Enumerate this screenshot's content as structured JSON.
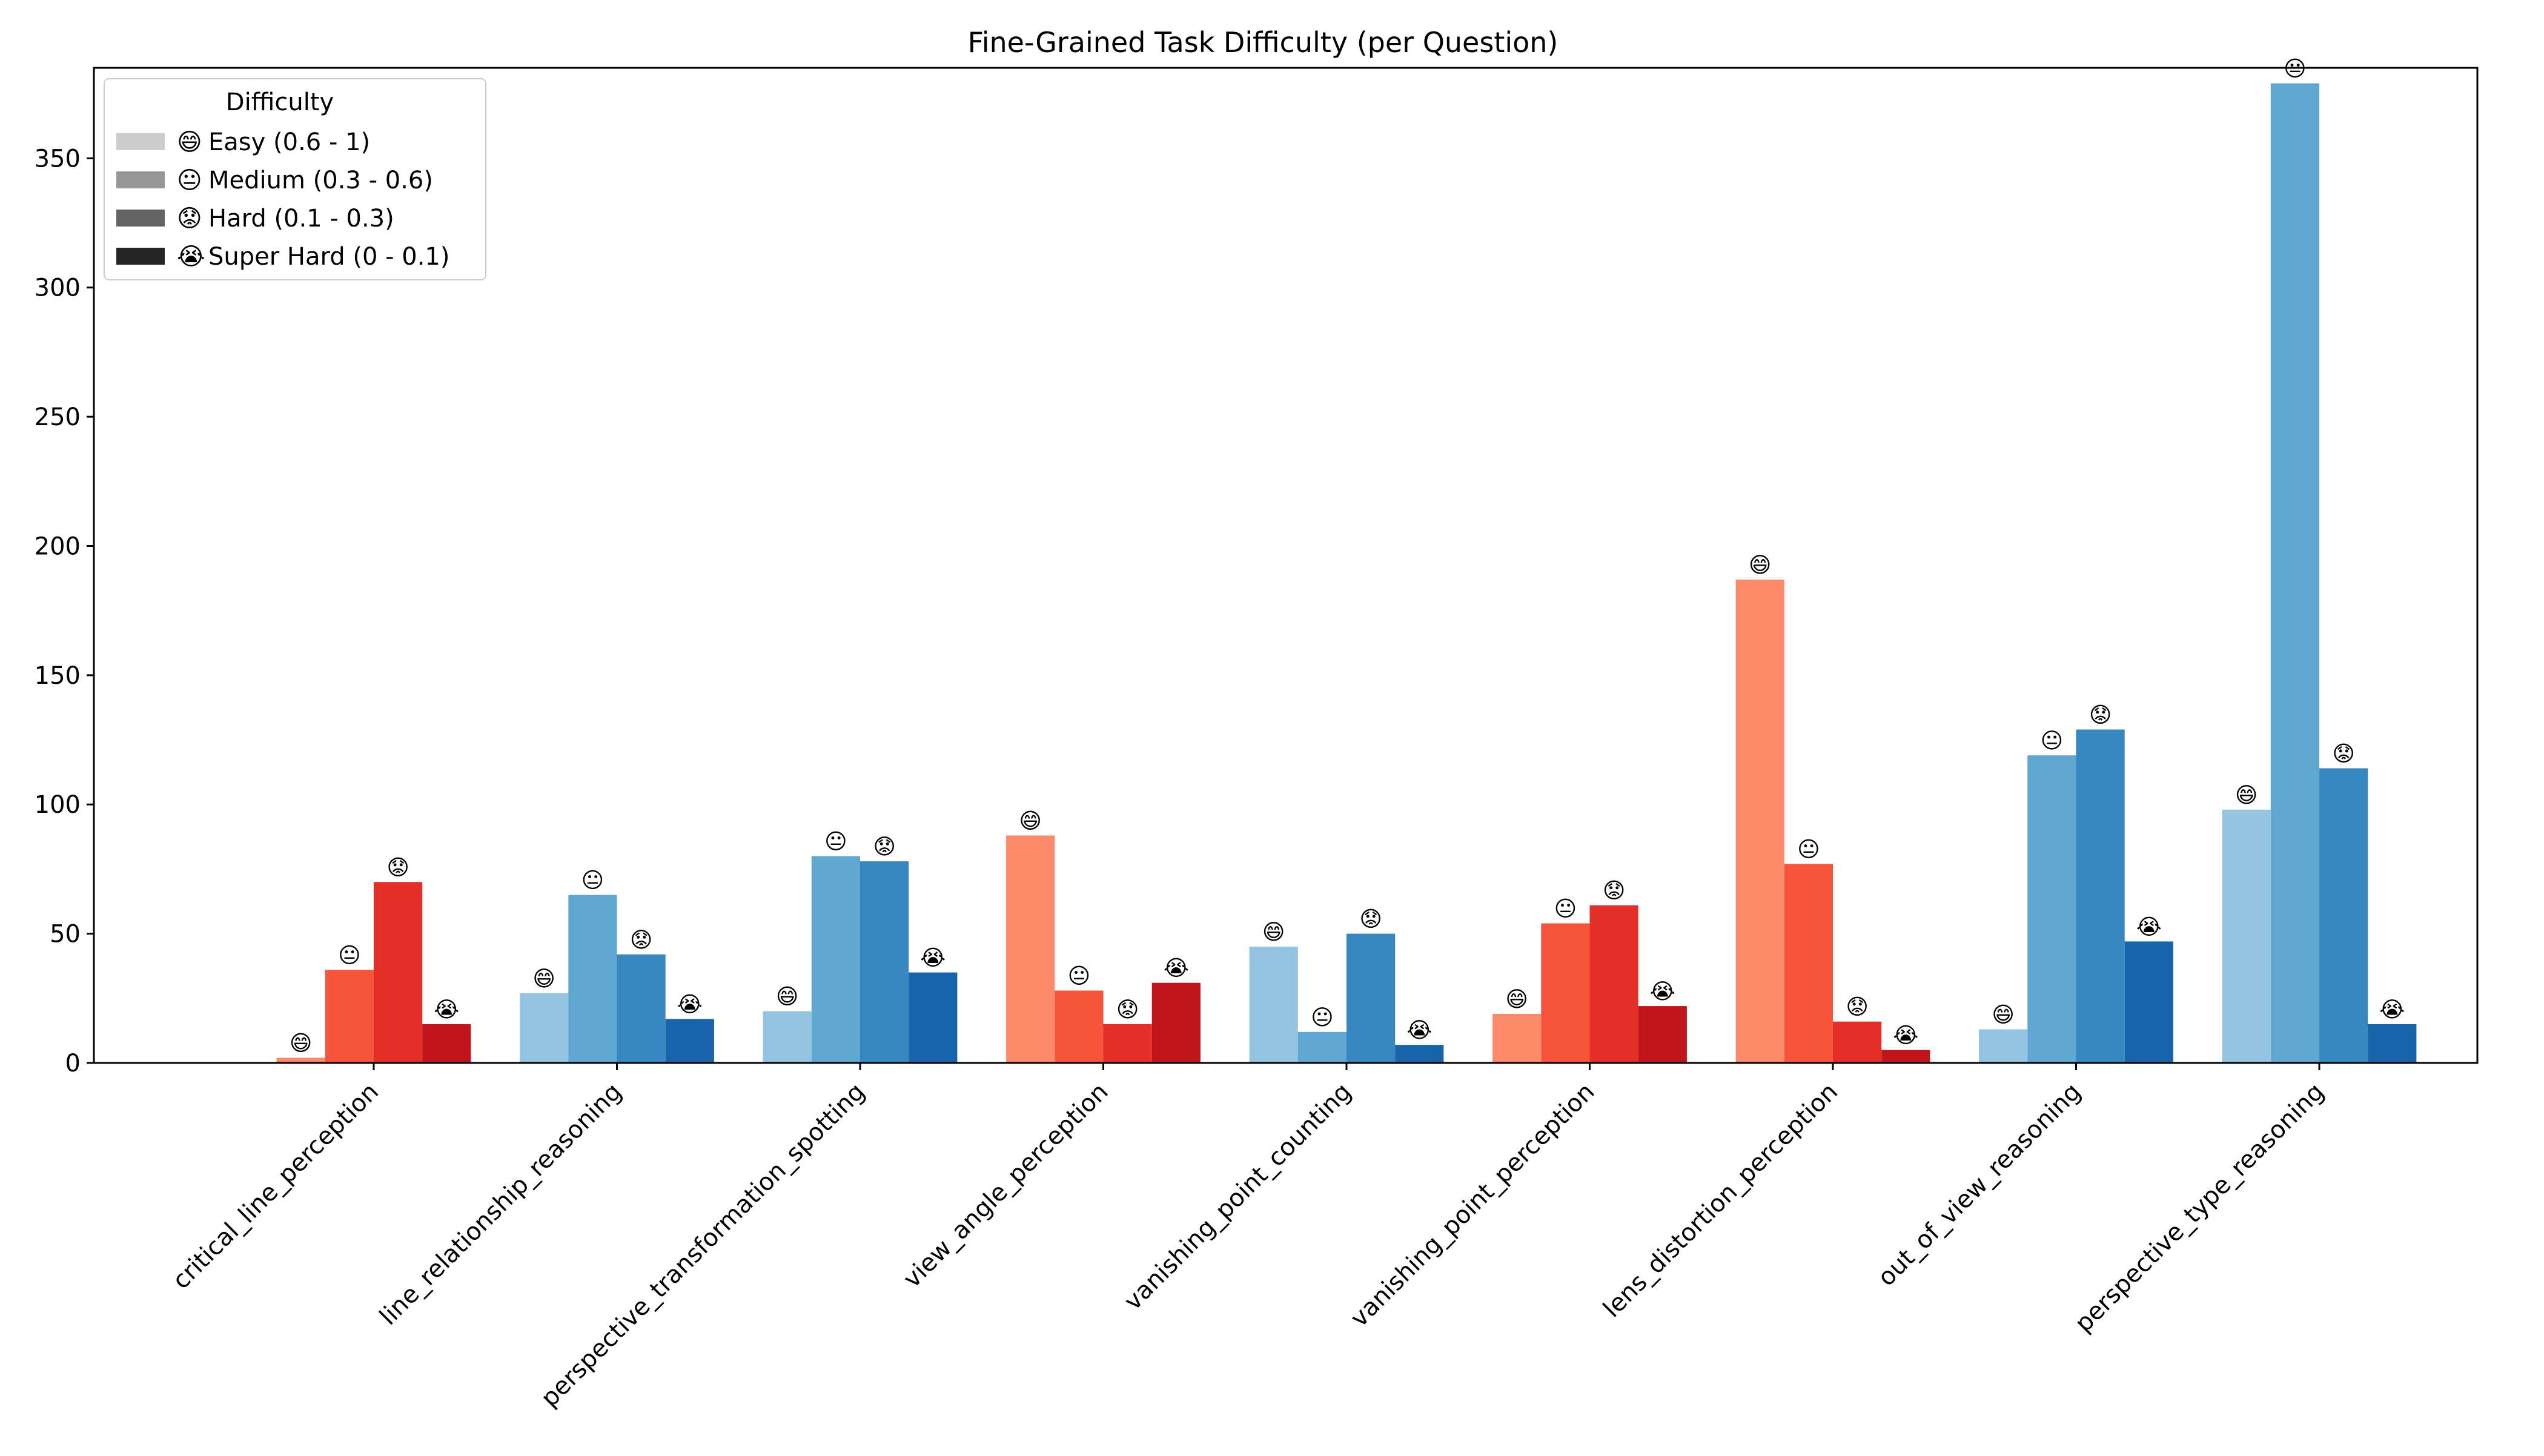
{
  "chart_data": {
    "type": "bar",
    "title": "Fine-Grained Task Difficulty (per Question)",
    "xlabel": "",
    "ylabel": "",
    "ylim": [
      0,
      385
    ],
    "yticks": [
      0,
      50,
      100,
      150,
      200,
      250,
      300,
      350
    ],
    "grid": false,
    "legend_position": "top-left",
    "categories": [
      "critical_line_perception",
      "line_relationship_reasoning",
      "perspective_transformation_spotting",
      "view_angle_perception",
      "vanishing_point_counting",
      "vanishing_point_perception",
      "lens_distortion_perception",
      "out_of_view_reasoning",
      "perspective_type_reasoning"
    ],
    "category_palette": [
      "red",
      "blue",
      "blue",
      "red",
      "blue",
      "red",
      "red",
      "blue",
      "blue"
    ],
    "palettes": {
      "red": [
        "#fc8a6a",
        "#f6553c",
        "#e32f27",
        "#c0151b"
      ],
      "blue": [
        "#94c4df",
        "#5fa6d1",
        "#3787c0",
        "#1764ab"
      ]
    },
    "legend": {
      "title": "Difficulty",
      "swatch_colors": [
        "#cccccc",
        "#969696",
        "#636363",
        "#252525"
      ]
    },
    "series": [
      {
        "name": "Easy (0.6 - 1)",
        "emoji": "😄",
        "values": [
          2,
          27,
          20,
          88,
          45,
          19,
          187,
          13,
          98
        ]
      },
      {
        "name": "Medium (0.3 - 0.6)",
        "emoji": "😐",
        "values": [
          36,
          65,
          80,
          28,
          12,
          54,
          77,
          119,
          379
        ]
      },
      {
        "name": "Hard (0.1 - 0.3)",
        "emoji": "😟",
        "values": [
          70,
          42,
          78,
          15,
          50,
          61,
          16,
          129,
          114
        ]
      },
      {
        "name": "Super Hard (0 - 0.1)",
        "emoji": "😭",
        "values": [
          15,
          17,
          35,
          31,
          7,
          22,
          5,
          47,
          15
        ]
      }
    ]
  }
}
